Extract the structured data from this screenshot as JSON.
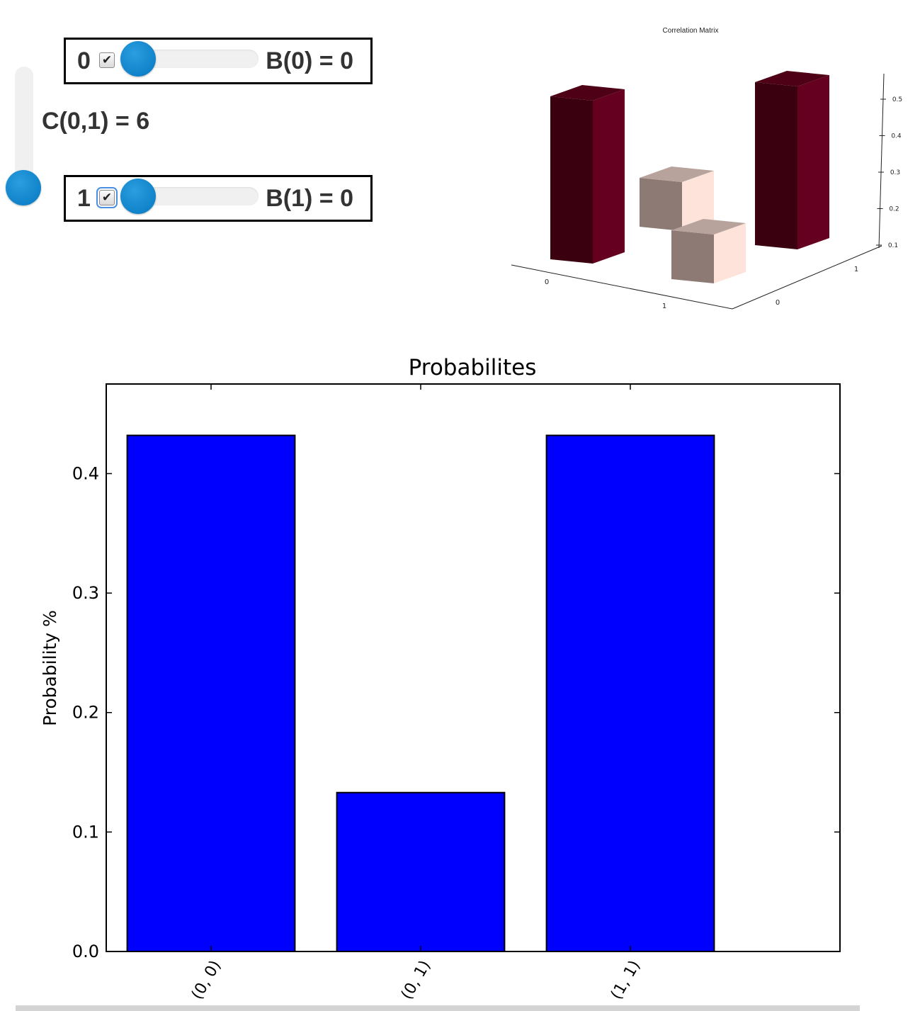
{
  "controls": {
    "coupling": {
      "label": "C(0,1) = 6",
      "value": 6
    },
    "qubits": [
      {
        "index_label": "0",
        "checked": true,
        "bias_label": "B(0) = 0",
        "bias_value": 0
      },
      {
        "index_label": "1",
        "checked": true,
        "bias_label": "B(1) = 0",
        "bias_value": 0
      }
    ]
  },
  "colors": {
    "bar_fill": "#0000ff",
    "slider_knob": "#0a86d0",
    "corr_high": "#6b0020",
    "corr_low": "#a88e82"
  },
  "chart_data": [
    {
      "type": "bar",
      "title": "Correlation Matrix",
      "view": "3d",
      "x_ticks": [
        "0",
        "1"
      ],
      "y_ticks": [
        "0",
        "1"
      ],
      "z_ticks": [
        "0.1",
        "0.2",
        "0.3",
        "0.4",
        "0.5"
      ],
      "cells": [
        {
          "x": "0",
          "y": "1",
          "value": 0.5
        },
        {
          "x": "1",
          "y": "1",
          "value": 0.15
        },
        {
          "x": "0",
          "y": "0",
          "value": 0.15
        },
        {
          "x": "1",
          "y": "0",
          "value": 0.5
        }
      ]
    },
    {
      "type": "bar",
      "title": "Probabilites",
      "categories": [
        "(0, 0)",
        "(0, 1)",
        "(1, 1)"
      ],
      "values": [
        0.432,
        0.133,
        0.432
      ],
      "xlabel": "",
      "ylabel": "Probability %",
      "ylim": [
        0,
        0.475
      ],
      "yticks": [
        "0.0",
        "0.1",
        "0.2",
        "0.3",
        "0.4"
      ],
      "grid": false
    }
  ]
}
